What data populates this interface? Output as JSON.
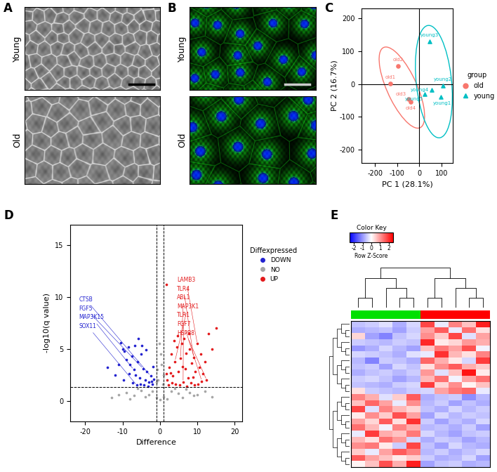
{
  "image_panels": [
    {
      "label": "A",
      "row_labels": [
        "Young",
        "Old"
      ]
    },
    {
      "label": "B",
      "row_labels": [
        "Young",
        "Old"
      ]
    }
  ],
  "chart_data": [
    {
      "type": "scatter",
      "label": "C",
      "x_label": "PC 1 (28.1%)",
      "y_label": "PC 2 (16.7%)",
      "xlim": [
        -260,
        150
      ],
      "ylim": [
        -240,
        230
      ],
      "xticks": [
        -200,
        -100,
        0,
        100
      ],
      "yticks": [
        -200,
        -100,
        0,
        100,
        200
      ],
      "hlines": [
        0
      ],
      "vlines": [
        0
      ],
      "legend": "center left",
      "legend_title": "group",
      "series": [
        {
          "name": "old",
          "color": "#f8766d",
          "marker": "circle",
          "point_labels": [
            "old1",
            "old2",
            "old3",
            "old4"
          ],
          "x": [
            -130,
            -95,
            -50,
            -40
          ],
          "y": [
            2,
            55,
            -45,
            -55
          ]
        },
        {
          "name": "young",
          "color": "#00bfc4",
          "marker": "triangle",
          "point_labels": [
            "young1",
            "young2",
            "young3",
            "young4",
            "young5"
          ],
          "x": [
            95,
            105,
            45,
            55,
            25
          ],
          "y": [
            -40,
            -5,
            130,
            -18,
            -30
          ]
        }
      ]
    },
    {
      "type": "scatter",
      "label": "D",
      "x_label": "Difference",
      "y_label": "-log10(q value)",
      "xlim": [
        -24,
        22
      ],
      "ylim": [
        -2,
        17
      ],
      "xticks": [
        -20,
        -10,
        0,
        10,
        20
      ],
      "yticks": [
        0,
        5,
        10,
        15
      ],
      "vlines": [
        -1,
        1
      ],
      "hlines": [
        1.3
      ],
      "legend": "upper left",
      "legend_title": "Diffexpressed",
      "series": [
        {
          "name": "DOWN",
          "color": "#2222d0",
          "x": [
            -14,
            -10.5,
            -10,
            -9.5,
            -9,
            -8.5,
            -8,
            -7.5,
            -7,
            -6.5,
            -6,
            -5.5,
            -5,
            -4.5,
            -4,
            -3.5,
            -3,
            -2.5,
            -2,
            -1.8,
            -9.8,
            -8.2,
            -7.2,
            -6.2,
            -5.2,
            -4.2,
            -3.2,
            -2.2,
            -1.6,
            -11,
            -12,
            -6.8,
            -5.8,
            -4.8,
            -3.8
          ],
          "y": [
            3.2,
            5.6,
            5,
            4.8,
            4,
            5.2,
            3.5,
            4.3,
            3,
            2.5,
            3.8,
            2.2,
            4.5,
            3.1,
            2,
            2.8,
            1.8,
            2.4,
            1.6,
            3.3,
            2,
            2.6,
            1.7,
            1.5,
            1.6,
            1.5,
            1.4,
            1.9,
            2.1,
            3.5,
            2.5,
            5.3,
            6,
            5.3,
            4.9
          ]
        },
        {
          "name": "NO",
          "color": "#a6a6a6",
          "x": [
            -9,
            -7,
            -5,
            -3,
            -1,
            0,
            1,
            3,
            5,
            7,
            9,
            -8,
            -6,
            -4,
            -2,
            2,
            4,
            6,
            8,
            10,
            -0.5,
            0.5,
            -1,
            1,
            0.3,
            -0.8,
            0.8,
            -0.2,
            12,
            -11,
            14,
            -13
          ],
          "y": [
            0.8,
            0.5,
            1,
            0.6,
            0.3,
            0.1,
            0.4,
            0.9,
            0.7,
            1.1,
            0.5,
            0.2,
            1.2,
            0.4,
            0.9,
            0.2,
            1.2,
            0.3,
            0.8,
            0.6,
            2,
            3.5,
            1.8,
            2.5,
            4.5,
            3,
            1.6,
            5.5,
            0.9,
            0.6,
            0.4,
            0.3
          ]
        },
        {
          "name": "UP",
          "color": "#e31a1c",
          "x": [
            2,
            2.5,
            3,
            3.5,
            4,
            4.5,
            5,
            5.5,
            6,
            6.5,
            7,
            7.5,
            8,
            8.5,
            9,
            9.5,
            10,
            10.5,
            11,
            11.5,
            12,
            12.5,
            13,
            14,
            15,
            2.2,
            3.2,
            4.2,
            5.2,
            6.2,
            7.2,
            8.2,
            9.2,
            10.2,
            5.8,
            4.8,
            7.8,
            3.8,
            2.8,
            1.7,
            1.8,
            6.8,
            8.8,
            11.2
          ],
          "y": [
            2,
            3.2,
            4.5,
            2.4,
            3.8,
            5.2,
            2.8,
            4.1,
            3.3,
            6,
            4.6,
            2.2,
            5,
            3.6,
            4.2,
            2.8,
            5.5,
            3.2,
            4.5,
            2.6,
            3.8,
            2,
            6.5,
            5,
            7,
            1.5,
            1.7,
            1.6,
            1.5,
            1.8,
            1.4,
            1.7,
            1.5,
            1.6,
            5.5,
            6.3,
            6.5,
            5.8,
            2.7,
            11.2,
            2.6,
            3.1,
            2.3,
            1.9
          ]
        }
      ],
      "annotations": [
        {
          "text": "CTSB",
          "x": -2.5,
          "y": 2.4,
          "color": "#2222d0"
        },
        {
          "text": "FGF5",
          "x": -4.5,
          "y": 3.1,
          "color": "#2222d0"
        },
        {
          "text": "MAP3K15",
          "x": -7,
          "y": 3,
          "color": "#2222d0"
        },
        {
          "text": "SOX11",
          "x": -6.2,
          "y": 1.5,
          "color": "#2222d0"
        },
        {
          "text": "LAMB3",
          "x": 10,
          "y": 5.5,
          "color": "#e31a1c"
        },
        {
          "text": "TLR4",
          "x": 9,
          "y": 4.2,
          "color": "#e31a1c"
        },
        {
          "text": "ABL1",
          "x": 5.5,
          "y": 4.1,
          "color": "#e31a1c"
        },
        {
          "text": "MAP3K1",
          "x": 4,
          "y": 3.8,
          "color": "#e31a1c"
        },
        {
          "text": "TLR1",
          "x": 6.2,
          "y": 1.8,
          "color": "#e31a1c"
        },
        {
          "text": "FGF7",
          "x": 11.2,
          "y": 1.9,
          "color": "#e31a1c"
        },
        {
          "text": "HSPB8",
          "x": 12.5,
          "y": 2,
          "color": "#e31a1c"
        }
      ]
    },
    {
      "type": "heatmap",
      "label": "E",
      "tick_labels": false,
      "column_colors": [
        "#00e000",
        "#00e000",
        "#00e000",
        "#00e000",
        "#00e000",
        "#ff0000",
        "#ff0000",
        "#ff0000",
        "#ff0000",
        "#ff0000"
      ],
      "colorbar": {
        "title": "Color Key",
        "label": "Row Z-Score",
        "range": [
          -2.5,
          2.5
        ],
        "ticks": [
          -2,
          -1,
          0,
          1,
          2
        ]
      },
      "values": [
        [
          -0.6,
          -0.5,
          -0.3,
          -0.8,
          -0.4,
          1.8,
          -0.2,
          1.2,
          0.6,
          2.2
        ],
        [
          -0.8,
          -0.7,
          -0.6,
          -0.9,
          -0.5,
          0.9,
          1.6,
          -0.2,
          1.4,
          0.3
        ],
        [
          0.4,
          -0.9,
          -1.2,
          -0.6,
          -0.4,
          1.1,
          0.5,
          1.8,
          -0.3,
          0.9
        ],
        [
          -0.5,
          -0.6,
          -0.7,
          -0.5,
          -0.6,
          2.1,
          0.2,
          0.4,
          1.0,
          0.8
        ],
        [
          -1.0,
          -0.8,
          -0.4,
          -0.7,
          -0.9,
          0.6,
          1.3,
          0.9,
          1.7,
          -0.1
        ],
        [
          -0.4,
          -0.5,
          -0.6,
          -0.8,
          -0.3,
          -0.2,
          2.0,
          0.7,
          0.3,
          1.2
        ],
        [
          -0.7,
          -1.2,
          -0.5,
          -0.6,
          -0.8,
          1.5,
          0.8,
          0.2,
          -0.4,
          1.9
        ],
        [
          -0.6,
          -0.5,
          -0.9,
          -0.4,
          -0.6,
          0.3,
          1.1,
          1.6,
          0.8,
          0.5
        ],
        [
          -0.8,
          -0.6,
          -0.5,
          -0.7,
          -0.5,
          1.0,
          -0.3,
          0.6,
          2.3,
          0.2
        ],
        [
          -0.5,
          -0.4,
          -0.6,
          -0.9,
          -0.7,
          0.7,
          1.4,
          -0.1,
          0.9,
          1.4
        ],
        [
          -0.6,
          -0.7,
          -0.8,
          -0.5,
          -0.4,
          1.9,
          0.4,
          1.1,
          0.1,
          0.6
        ],
        [
          0.3,
          -0.5,
          -0.6,
          -0.7,
          -0.5,
          -0.4,
          0.9,
          1.3,
          1.5,
          -0.2
        ],
        [
          1.2,
          0.8,
          -0.3,
          0.5,
          1.6,
          -0.8,
          -0.6,
          -0.5,
          -1.1,
          -0.7
        ],
        [
          0.6,
          1.5,
          0.9,
          -0.2,
          1.1,
          -0.7,
          -0.5,
          -0.9,
          -0.6,
          -0.8
        ],
        [
          1.8,
          -0.3,
          1.2,
          0.7,
          0.4,
          -0.6,
          -0.8,
          -0.4,
          -0.7,
          -0.5
        ],
        [
          0.2,
          1.1,
          0.5,
          1.7,
          0.9,
          -0.9,
          -0.4,
          -0.7,
          -0.5,
          -0.6
        ],
        [
          0.9,
          0.4,
          1.6,
          0.3,
          2.0,
          -0.5,
          -0.9,
          -0.6,
          -0.8,
          -0.4
        ],
        [
          1.4,
          0.7,
          -0.1,
          1.2,
          0.8,
          -0.7,
          -0.6,
          -0.8,
          -0.5,
          -0.9
        ],
        [
          -0.2,
          1.9,
          0.8,
          0.6,
          1.3,
          -0.4,
          -0.7,
          -0.9,
          -0.6,
          -0.5
        ],
        [
          0.7,
          0.3,
          1.4,
          1.0,
          -0.4,
          -0.8,
          -0.5,
          -0.6,
          -0.9,
          -0.7
        ],
        [
          1.1,
          1.3,
          0.2,
          -0.5,
          1.8,
          -0.6,
          -0.9,
          -0.4,
          -0.7,
          -0.8
        ],
        [
          0.5,
          -0.2,
          0.9,
          1.6,
          1.2,
          -0.7,
          -0.5,
          -0.8,
          -0.6,
          -0.4
        ],
        [
          1.6,
          0.9,
          0.6,
          0.2,
          0.5,
          -0.5,
          -0.8,
          -0.7,
          -0.4,
          -0.9
        ],
        [
          0.1,
          0.6,
          1.7,
          0.8,
          2.2,
          -0.9,
          -0.6,
          -0.5,
          -0.8,
          -0.7
        ]
      ]
    }
  ]
}
